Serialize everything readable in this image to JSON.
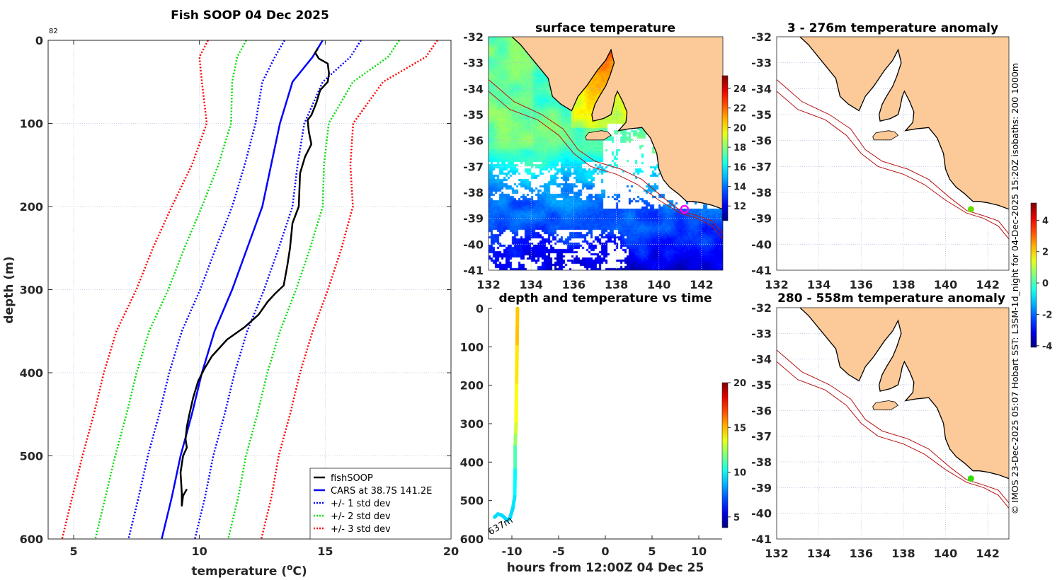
{
  "chart_data": [
    {
      "id": "profile",
      "type": "line",
      "title": "Fish SOOP 04 Dec 2025",
      "corner_label": "82",
      "xlabel_prefix": "temperature (",
      "xlabel_sup": "o",
      "xlabel_suffix": "C)",
      "ylabel": "depth (m)",
      "xlim": [
        4,
        20
      ],
      "ylim": [
        600,
        0
      ],
      "xticks": [
        5,
        10,
        15,
        20
      ],
      "yticks": [
        0,
        100,
        200,
        300,
        400,
        500,
        600
      ],
      "grid": true,
      "legend_position": "bottom-right",
      "series": [
        {
          "name": "fishSOOP",
          "color": "#000000",
          "style": "solid",
          "points": [
            [
              14.7,
              10
            ],
            [
              14.6,
              15
            ],
            [
              14.75,
              22
            ],
            [
              15.1,
              28
            ],
            [
              15.15,
              40
            ],
            [
              15.1,
              50
            ],
            [
              14.8,
              60
            ],
            [
              14.65,
              75
            ],
            [
              14.45,
              90
            ],
            [
              14.3,
              96
            ],
            [
              14.35,
              110
            ],
            [
              14.45,
              125
            ],
            [
              14.2,
              140
            ],
            [
              14.0,
              160
            ],
            [
              13.95,
              200
            ],
            [
              13.7,
              220
            ],
            [
              13.6,
              250
            ],
            [
              13.5,
              270
            ],
            [
              13.35,
              295
            ],
            [
              13.0,
              305
            ],
            [
              12.7,
              315
            ],
            [
              12.35,
              330
            ],
            [
              11.8,
              345
            ],
            [
              11.1,
              360
            ],
            [
              10.5,
              380
            ],
            [
              10.2,
              395
            ],
            [
              9.95,
              410
            ],
            [
              9.75,
              430
            ],
            [
              9.6,
              450
            ],
            [
              9.5,
              465
            ],
            [
              9.45,
              480
            ],
            [
              9.5,
              490
            ],
            [
              9.35,
              500
            ],
            [
              9.25,
              520
            ],
            [
              9.3,
              545
            ],
            [
              9.3,
              560
            ],
            [
              9.35,
              548
            ],
            [
              9.5,
              540
            ]
          ]
        },
        {
          "name": "CARS at 38.7S 141.2E",
          "color": "#0000ff",
          "style": "solid",
          "depths": [
            0,
            20,
            50,
            100,
            150,
            200,
            250,
            300,
            350,
            400,
            450,
            500,
            550,
            600
          ],
          "temps": [
            14.9,
            14.5,
            13.7,
            13.2,
            12.85,
            12.5,
            11.9,
            11.3,
            10.6,
            10.1,
            9.7,
            9.25,
            8.9,
            8.5
          ]
        }
      ],
      "std_dev": [
        1.52,
        1.5,
        1.2,
        0.97,
        1.05,
        1.2,
        1.25,
        1.27,
        1.3,
        1.3,
        1.3,
        1.3,
        1.32,
        1.32
      ],
      "std_bands": [
        {
          "name": "+/- 1 std dev",
          "k": 1,
          "color": "#0000ff"
        },
        {
          "name": "+/- 2 std dev",
          "k": 2,
          "color": "#00dd00"
        },
        {
          "name": "+/- 3 std dev",
          "k": 3,
          "color": "#ff0000"
        }
      ]
    },
    {
      "id": "sst-map",
      "type": "heatmap",
      "title": "surface temperature",
      "xlim": [
        132,
        143
      ],
      "ylim": [
        -41,
        -32
      ],
      "xticks": [
        132,
        134,
        136,
        138,
        140,
        142
      ],
      "yticks": [
        -32,
        -33,
        -34,
        -35,
        -36,
        -37,
        -38,
        -39,
        -40,
        -41
      ],
      "colorbar": {
        "clim": [
          10.5,
          25.3
        ],
        "ticks": [
          12,
          14,
          16,
          18,
          20,
          22,
          24
        ]
      },
      "marker": {
        "lon": 141.2,
        "lat": -38.65,
        "color": "#ff00ff"
      }
    },
    {
      "id": "time-plot",
      "type": "line",
      "title": "depth and temperature vs time",
      "xlabel": "hours from 12:00Z 04 Dec 25",
      "xlim": [
        -12.5,
        12.5
      ],
      "ylim": [
        600,
        0
      ],
      "xticks": [
        -10,
        -5,
        0,
        5,
        10
      ],
      "yticks": [
        0,
        100,
        200,
        300,
        400,
        500,
        600
      ],
      "annotation": "637m",
      "colorbar": {
        "clim": [
          3.8,
          20
        ],
        "ticks": [
          5,
          10,
          15,
          20
        ]
      },
      "path": [
        [
          -9.4,
          0,
          14.8
        ],
        [
          -9.42,
          50,
          14.9
        ],
        [
          -9.45,
          100,
          14.3
        ],
        [
          -9.5,
          200,
          13.9
        ],
        [
          -9.55,
          300,
          13.2
        ],
        [
          -9.6,
          330,
          12.3
        ],
        [
          -9.65,
          360,
          11.1
        ],
        [
          -9.65,
          420,
          9.9
        ],
        [
          -9.7,
          490,
          9.5
        ],
        [
          -9.9,
          520,
          9.3
        ],
        [
          -10.2,
          545,
          9.3
        ],
        [
          -10.5,
          552,
          9.3
        ],
        [
          -10.8,
          544,
          9.3
        ],
        [
          -11.1,
          538,
          9.3
        ],
        [
          -11.5,
          535,
          9.3
        ],
        [
          -11.85,
          543,
          9.3
        ]
      ]
    },
    {
      "id": "anomaly-shallow",
      "type": "heatmap",
      "title": "3 - 276m temperature anomaly",
      "xlim": [
        132,
        143
      ],
      "ylim": [
        -41,
        -32
      ],
      "xticks": [
        132,
        134,
        136,
        138,
        140,
        142
      ],
      "yticks": [
        -32,
        -33,
        -34,
        -35,
        -36,
        -37,
        -38,
        -39,
        -40,
        -41
      ],
      "marker": {
        "lon": 141.2,
        "lat": -38.65,
        "value": 0.5,
        "color": "#66dd00"
      }
    },
    {
      "id": "anomaly-deep",
      "type": "heatmap",
      "title": "280 - 558m temperature anomaly",
      "xlim": [
        132,
        143
      ],
      "ylim": [
        -41,
        -32
      ],
      "xticks": [
        132,
        134,
        136,
        138,
        140,
        142
      ],
      "yticks": [
        -32,
        -33,
        -34,
        -35,
        -36,
        -37,
        -38,
        -39,
        -40,
        -41
      ],
      "marker": {
        "lon": 141.2,
        "lat": -38.65,
        "value": 0.3,
        "color": "#33dd00"
      }
    },
    {
      "id": "anomaly-colorbar",
      "type": "heatmap",
      "clim": [
        -4.1,
        5.1
      ],
      "ticks": [
        -4,
        -2,
        0,
        2,
        4
      ]
    }
  ],
  "geo": {
    "land_color": "#fcca98",
    "coast": [
      [
        133.1,
        -32
      ],
      [
        133.5,
        -32.3
      ],
      [
        134.2,
        -33.0
      ],
      [
        134.8,
        -33.6
      ],
      [
        135.0,
        -34.3
      ],
      [
        135.4,
        -34.6
      ],
      [
        135.9,
        -34.85
      ],
      [
        136.2,
        -34.3
      ],
      [
        136.6,
        -33.9
      ],
      [
        137.1,
        -33.3
      ],
      [
        137.5,
        -32.9
      ],
      [
        137.75,
        -32.5
      ],
      [
        137.9,
        -33.0
      ],
      [
        137.7,
        -33.5
      ],
      [
        137.5,
        -33.9
      ],
      [
        137.2,
        -34.3
      ],
      [
        137.0,
        -34.6
      ],
      [
        136.85,
        -35.0
      ],
      [
        136.9,
        -35.25
      ],
      [
        137.4,
        -35.15
      ],
      [
        137.75,
        -35.0
      ],
      [
        137.85,
        -34.7
      ],
      [
        137.95,
        -34.3
      ],
      [
        138.05,
        -34.1
      ],
      [
        138.3,
        -34.5
      ],
      [
        138.5,
        -34.9
      ],
      [
        138.45,
        -35.3
      ],
      [
        138.1,
        -35.62
      ],
      [
        138.6,
        -35.55
      ],
      [
        139.2,
        -35.5
      ],
      [
        139.6,
        -35.9
      ],
      [
        139.9,
        -36.5
      ],
      [
        140.0,
        -37.1
      ],
      [
        140.2,
        -37.5
      ],
      [
        140.5,
        -37.8
      ],
      [
        140.9,
        -38.05
      ],
      [
        141.3,
        -38.35
      ],
      [
        141.6,
        -38.35
      ],
      [
        142.0,
        -38.4
      ],
      [
        142.5,
        -38.5
      ],
      [
        143.0,
        -38.65
      ],
      [
        143.0,
        -32
      ]
    ],
    "island": [
      [
        136.55,
        -35.85
      ],
      [
        136.7,
        -35.7
      ],
      [
        137.3,
        -35.62
      ],
      [
        137.6,
        -35.67
      ],
      [
        137.75,
        -35.8
      ],
      [
        137.4,
        -35.98
      ],
      [
        136.6,
        -35.98
      ]
    ],
    "isobaths": [
      [
        [
          132,
          -33.65
        ],
        [
          133.2,
          -34.5
        ],
        [
          134.5,
          -35.0
        ],
        [
          135.5,
          -35.55
        ],
        [
          136.2,
          -36.35
        ],
        [
          137.0,
          -36.8
        ],
        [
          138.2,
          -37.1
        ],
        [
          139.2,
          -37.5
        ],
        [
          140.2,
          -38.2
        ],
        [
          141.0,
          -38.7
        ],
        [
          141.8,
          -38.9
        ],
        [
          142.5,
          -39.1
        ],
        [
          143.0,
          -39.6
        ]
      ],
      [
        [
          132,
          -34.1
        ],
        [
          133,
          -34.8
        ],
        [
          134.3,
          -35.2
        ],
        [
          135.3,
          -35.8
        ],
        [
          136.0,
          -36.5
        ],
        [
          136.8,
          -37.0
        ],
        [
          138.0,
          -37.3
        ],
        [
          139.0,
          -37.7
        ],
        [
          140.0,
          -38.3
        ],
        [
          141.0,
          -38.8
        ],
        [
          141.8,
          -39.0
        ],
        [
          142.5,
          -39.3
        ],
        [
          143.0,
          -39.8
        ]
      ]
    ],
    "isobath_color": "#b81414"
  },
  "side_note": "© IMOS 23-Dec-2025 05:07 Hobart SST: L3SM-1d_night for 04-Dec-2025 15:20Z isobaths: 200  1000m"
}
